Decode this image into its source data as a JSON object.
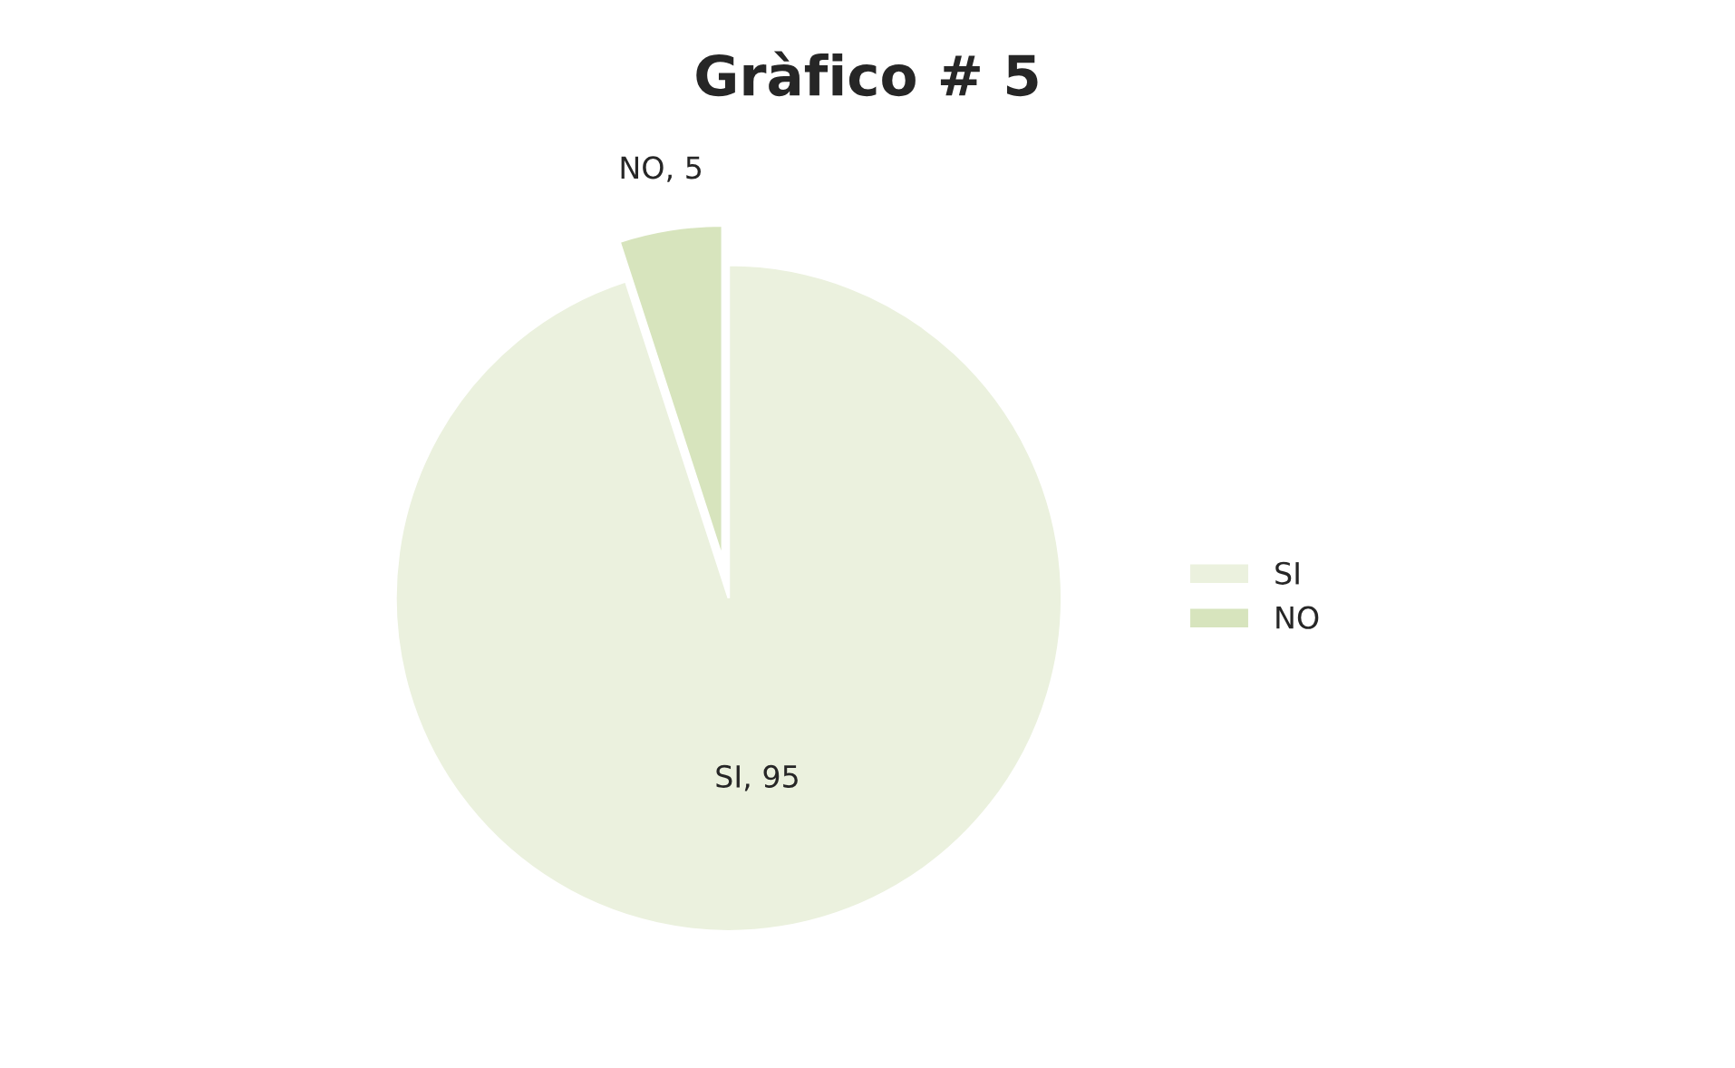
{
  "chart_data": {
    "type": "pie",
    "title": "Gràfico # 5",
    "categories": [
      "SI",
      "NO"
    ],
    "values": [
      95,
      5
    ],
    "colors": [
      "#ebf1de",
      "#d7e4bd"
    ],
    "value_labels": [
      "SI, 95",
      "NO, 5"
    ],
    "legend": "right"
  }
}
